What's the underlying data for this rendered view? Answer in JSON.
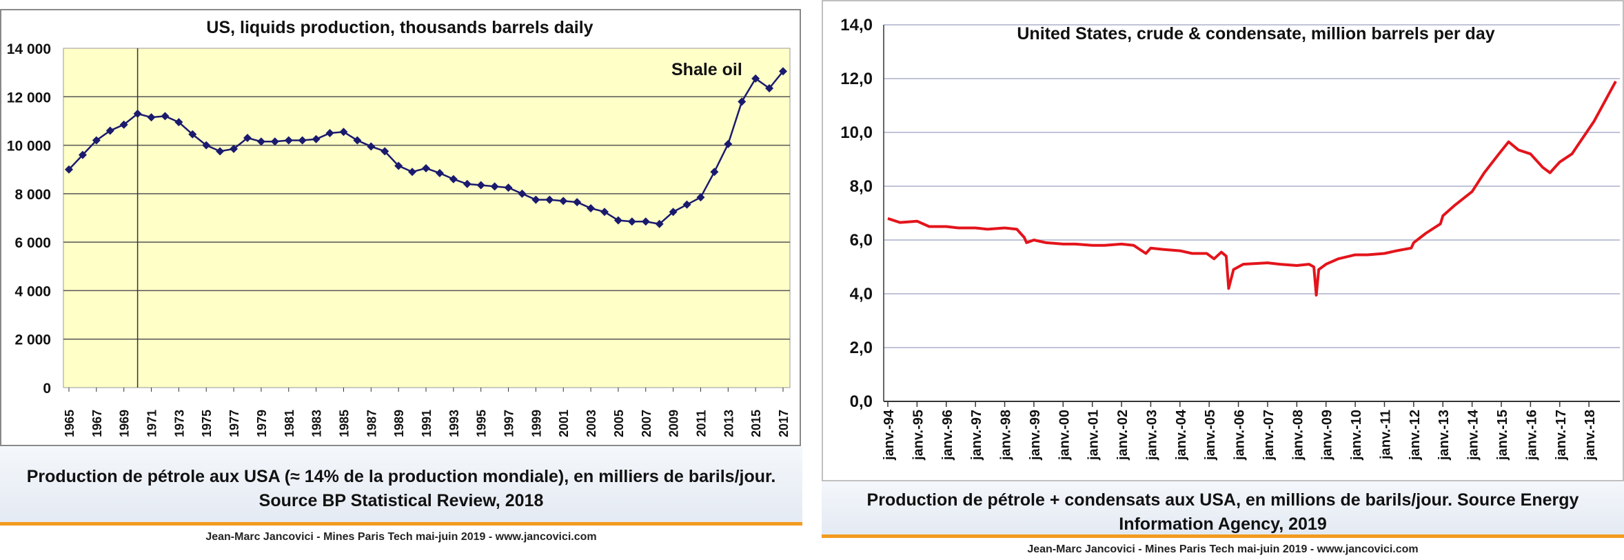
{
  "left": {
    "caption": "Production de pétrole aux USA (≈ 14% de la production mondiale), en milliers de barils/jour. Source BP Statistical Review, 2018",
    "footer": "Jean-Marc Jancovici - Mines Paris Tech mai-juin 2019 - www.jancovici.com"
  },
  "right": {
    "caption": "Production de pétrole + condensats aux USA, en millions de barils/jour. Source Energy Information Agency, 2019",
    "footer": "Jean-Marc Jancovici - Mines Paris Tech mai-juin 2019 - www.jancovici.com"
  },
  "colors": {
    "left_plot_bg": "#ffffc8",
    "left_series": "#1a1a6e",
    "right_series": "#e3141b",
    "accent_rule": "#f39a1e"
  },
  "chart_data": [
    {
      "type": "line",
      "title": "US, liquids production, thousands barrels daily",
      "annotation": "Shale oil",
      "marker_line_year": 1970,
      "x": [
        1965,
        1966,
        1967,
        1968,
        1969,
        1970,
        1971,
        1972,
        1973,
        1974,
        1975,
        1976,
        1977,
        1978,
        1979,
        1980,
        1981,
        1982,
        1983,
        1984,
        1985,
        1986,
        1987,
        1988,
        1989,
        1990,
        1991,
        1992,
        1993,
        1994,
        1995,
        1996,
        1997,
        1998,
        1999,
        2000,
        2001,
        2002,
        2003,
        2004,
        2005,
        2006,
        2007,
        2008,
        2009,
        2010,
        2011,
        2012,
        2013,
        2014,
        2015,
        2016,
        2017
      ],
      "values": [
        9000,
        9600,
        10200,
        10600,
        10850,
        11300,
        11150,
        11200,
        10950,
        10450,
        10000,
        9750,
        9850,
        10300,
        10150,
        10150,
        10200,
        10200,
        10250,
        10500,
        10550,
        10200,
        9950,
        9750,
        9150,
        8900,
        9050,
        8850,
        8600,
        8400,
        8350,
        8300,
        8250,
        8000,
        7750,
        7750,
        7700,
        7650,
        7400,
        7250,
        6900,
        6850,
        6850,
        6750,
        7250,
        7550,
        7850,
        8900,
        10050,
        11800,
        12750,
        12350,
        13050
      ],
      "tick_labels": [
        "1965",
        "1967",
        "1969",
        "1971",
        "1973",
        "1975",
        "1977",
        "1979",
        "1981",
        "1983",
        "1985",
        "1987",
        "1989",
        "1991",
        "1993",
        "1995",
        "1997",
        "1999",
        "2001",
        "2003",
        "2005",
        "2007",
        "2009",
        "2011",
        "2013",
        "2015",
        "2017"
      ],
      "y_ticks": [
        "0",
        "2 000",
        "4 000",
        "6 000",
        "8 000",
        "10 000",
        "12 000",
        "14 000"
      ],
      "ylim": [
        0,
        14000
      ],
      "grid": true
    },
    {
      "type": "line",
      "title": "United States, crude & condensate, million barrels per day",
      "x_start": "1994-01",
      "x_end": "2018-12",
      "anchors": [
        [
          "1994-01",
          6.8
        ],
        [
          "1994-06",
          6.65
        ],
        [
          "1995-01",
          6.7
        ],
        [
          "1995-06",
          6.5
        ],
        [
          "1996-01",
          6.5
        ],
        [
          "1996-06",
          6.45
        ],
        [
          "1997-01",
          6.45
        ],
        [
          "1997-06",
          6.4
        ],
        [
          "1998-01",
          6.45
        ],
        [
          "1998-06",
          6.4
        ],
        [
          "1998-09",
          6.1
        ],
        [
          "1998-10",
          5.9
        ],
        [
          "1999-01",
          6.0
        ],
        [
          "1999-06",
          5.9
        ],
        [
          "2000-01",
          5.85
        ],
        [
          "2000-06",
          5.85
        ],
        [
          "2001-01",
          5.8
        ],
        [
          "2001-06",
          5.8
        ],
        [
          "2002-01",
          5.85
        ],
        [
          "2002-06",
          5.8
        ],
        [
          "2002-11",
          5.5
        ],
        [
          "2003-01",
          5.7
        ],
        [
          "2003-06",
          5.65
        ],
        [
          "2004-01",
          5.6
        ],
        [
          "2004-06",
          5.5
        ],
        [
          "2004-12",
          5.5
        ],
        [
          "2005-03",
          5.3
        ],
        [
          "2005-06",
          5.55
        ],
        [
          "2005-08",
          5.4
        ],
        [
          "2005-09",
          4.2
        ],
        [
          "2005-11",
          4.9
        ],
        [
          "2006-03",
          5.1
        ],
        [
          "2007-01",
          5.15
        ],
        [
          "2007-06",
          5.1
        ],
        [
          "2008-01",
          5.05
        ],
        [
          "2008-06",
          5.1
        ],
        [
          "2008-08",
          5.0
        ],
        [
          "2008-09",
          3.95
        ],
        [
          "2008-10",
          4.9
        ],
        [
          "2009-01",
          5.1
        ],
        [
          "2009-06",
          5.3
        ],
        [
          "2010-01",
          5.45
        ],
        [
          "2010-06",
          5.45
        ],
        [
          "2011-01",
          5.5
        ],
        [
          "2011-06",
          5.6
        ],
        [
          "2011-12",
          5.7
        ],
        [
          "2012-01",
          5.9
        ],
        [
          "2012-06",
          6.25
        ],
        [
          "2012-12",
          6.6
        ],
        [
          "2013-01",
          6.9
        ],
        [
          "2013-06",
          7.3
        ],
        [
          "2014-01",
          7.8
        ],
        [
          "2014-06",
          8.5
        ],
        [
          "2014-12",
          9.2
        ],
        [
          "2015-04",
          9.65
        ],
        [
          "2015-08",
          9.35
        ],
        [
          "2016-01",
          9.2
        ],
        [
          "2016-06",
          8.7
        ],
        [
          "2016-09",
          8.5
        ],
        [
          "2017-01",
          8.9
        ],
        [
          "2017-06",
          9.2
        ],
        [
          "2017-12",
          10.0
        ],
        [
          "2018-03",
          10.4
        ],
        [
          "2018-06",
          10.9
        ],
        [
          "2018-09",
          11.4
        ],
        [
          "2018-12",
          11.9
        ]
      ],
      "tick_labels": [
        "janv.-94",
        "janv.-95",
        "janv.-96",
        "janv.-97",
        "janv.-98",
        "janv.-99",
        "janv.-00",
        "janv.-01",
        "janv.-02",
        "janv.-03",
        "janv.-04",
        "janv.-05",
        "janv.-06",
        "janv.-07",
        "janv.-08",
        "janv.-09",
        "janv.-10",
        "janv.-11",
        "janv.-12",
        "janv.-13",
        "janv.-14",
        "janv.-15",
        "janv.-16",
        "janv.-17",
        "janv.-18"
      ],
      "y_ticks": [
        "0,0",
        "2,0",
        "4,0",
        "6,0",
        "8,0",
        "10,0",
        "12,0",
        "14,0"
      ],
      "ylim": [
        0,
        14
      ],
      "grid": true
    }
  ]
}
